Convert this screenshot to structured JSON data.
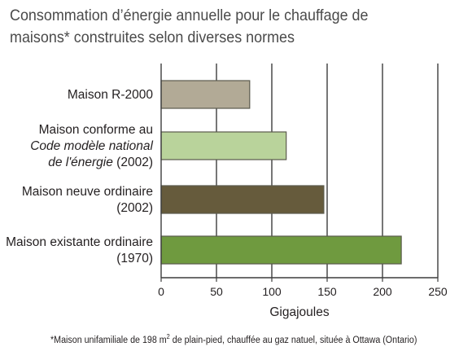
{
  "title_lines": [
    "Consommation d’énergie annuelle pour le chauffage de",
    "maisons* construites selon diverses normes"
  ],
  "footnote": {
    "before_sup": "*Maison unifamiliale de 198 m",
    "sup": "2",
    "after_sup": " de plain-pied, chauffée au gaz natuel, située à Ottawa (Ontario)"
  },
  "chart_data": {
    "type": "bar",
    "orientation": "horizontal",
    "title": "Consommation d’énergie annuelle pour le chauffage de maisons* construites selon diverses normes",
    "xlabel": "Gigajoules",
    "ylabel": "",
    "xlim": [
      0,
      250
    ],
    "xticks": [
      "0",
      "50",
      "100",
      "150",
      "200",
      "250"
    ],
    "grid": "vertical",
    "categories": [
      {
        "lines": [
          {
            "text": "Maison R-2000"
          }
        ]
      },
      {
        "lines": [
          {
            "text": "Maison conforme au"
          },
          {
            "parts": [
              {
                "text": "Code modèle national",
                "italic": true
              }
            ]
          },
          {
            "parts": [
              {
                "text": "de l'énergie",
                "italic": true
              },
              {
                "text": " (2002)",
                "italic": false
              }
            ]
          }
        ]
      },
      {
        "lines": [
          {
            "text": "Maison neuve ordinaire"
          },
          {
            "text": "(2002)"
          }
        ]
      },
      {
        "lines": [
          {
            "text": "Maison existante ordinaire"
          },
          {
            "text": "(1970)"
          }
        ]
      }
    ],
    "values": [
      80,
      113,
      147,
      217
    ],
    "colors": [
      "#b2aa96",
      "#b9d39b",
      "#665b3c",
      "#6f9a3f"
    ],
    "bar_border": "#5b5b4d"
  }
}
